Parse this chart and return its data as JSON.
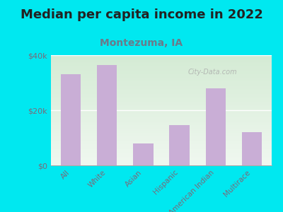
{
  "title": "Median per capita income in 2022",
  "subtitle": "Montezuma, IA",
  "categories": [
    "All",
    "White",
    "Asian",
    "Hispanic",
    "American Indian",
    "Multirace"
  ],
  "values": [
    33000,
    36500,
    8000,
    14500,
    28000,
    12000
  ],
  "bar_color": "#c9aed6",
  "title_fontsize": 13,
  "subtitle_fontsize": 10,
  "subtitle_color": "#6a7a8a",
  "tick_label_color": "#7a6a7a",
  "background_outer": "#00e8f0",
  "bg_top_color": "#eef5ee",
  "bg_bottom_color": "#d4ead4",
  "ylim": [
    0,
    40000
  ],
  "yticks": [
    0,
    20000,
    40000
  ],
  "ytick_labels": [
    "$0",
    "$20k",
    "$40k"
  ],
  "watermark": "City-Data.com"
}
